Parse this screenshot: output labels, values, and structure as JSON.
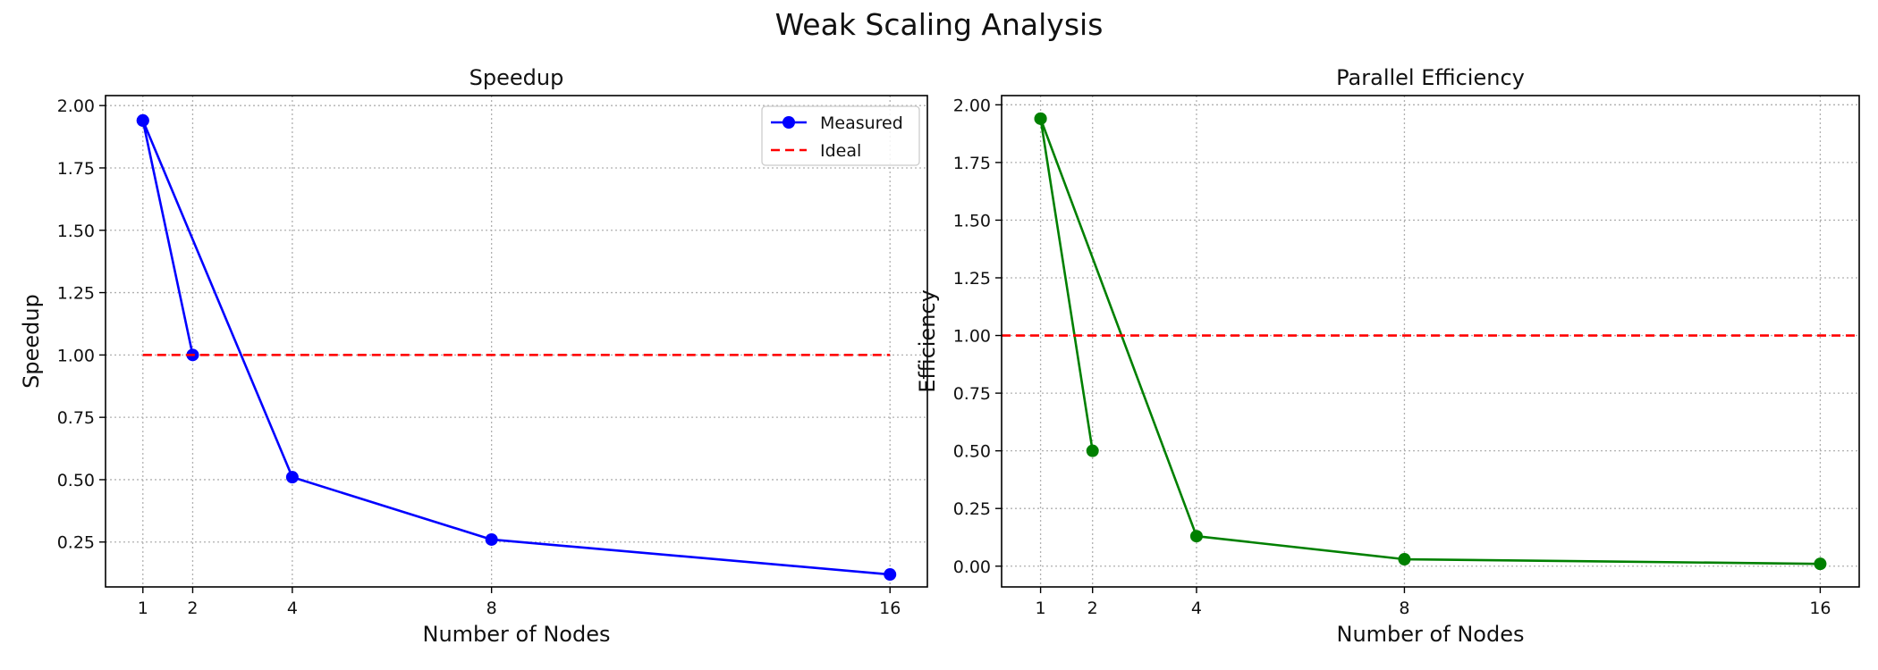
{
  "suptitle": "Weak Scaling Analysis",
  "chart_data": [
    {
      "type": "line",
      "title": "Speedup",
      "xlabel": "Number of Nodes",
      "ylabel": "Speedup",
      "x_ticks": [
        1,
        2,
        4,
        8,
        16
      ],
      "y_ticks": [
        "0.25",
        "0.50",
        "0.75",
        "1.00",
        "1.25",
        "1.50",
        "1.75",
        "2.00"
      ],
      "xlim": [
        0.25,
        16.75
      ],
      "ylim": [
        0.07,
        2.04
      ],
      "grid": true,
      "legend": "upper-right",
      "series": [
        {
          "name": "Measured",
          "style": "solid-marker",
          "color": "#0000ff",
          "points": [
            [
              1,
              1.94
            ],
            [
              2,
              1.0
            ],
            [
              1,
              1.94
            ],
            [
              4,
              0.51
            ],
            [
              8,
              0.26
            ],
            [
              16,
              0.12
            ]
          ]
        },
        {
          "name": "Ideal",
          "style": "dashed",
          "color": "#ff0000",
          "points": [
            [
              1,
              1.0
            ],
            [
              16,
              1.0
            ]
          ]
        }
      ]
    },
    {
      "type": "line",
      "title": "Parallel Efficiency",
      "xlabel": "Number of Nodes",
      "ylabel": "Efficiency",
      "x_ticks": [
        1,
        2,
        4,
        8,
        16
      ],
      "y_ticks": [
        "0.00",
        "0.25",
        "0.50",
        "0.75",
        "1.00",
        "1.25",
        "1.50",
        "1.75",
        "2.00"
      ],
      "xlim": [
        0.25,
        16.75
      ],
      "ylim": [
        -0.09,
        2.04
      ],
      "grid": true,
      "series": [
        {
          "style": "solid-marker",
          "color": "#008000",
          "points": [
            [
              1,
              1.94
            ],
            [
              2,
              0.5
            ],
            [
              1,
              1.94
            ],
            [
              4,
              0.13
            ],
            [
              8,
              0.03
            ],
            [
              16,
              0.01
            ]
          ]
        },
        {
          "style": "axhline-dashed",
          "color": "#ff0000",
          "y": 1.0
        }
      ]
    }
  ]
}
